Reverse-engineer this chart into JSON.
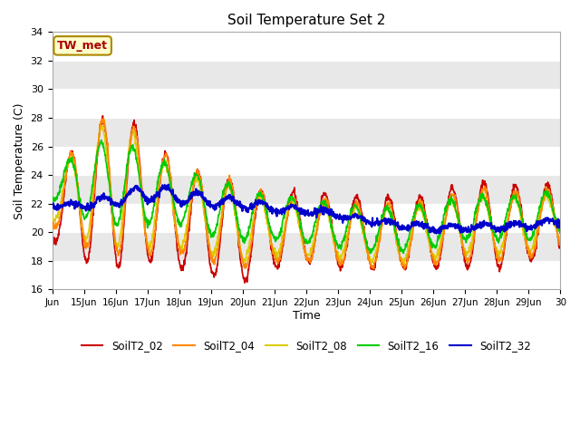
{
  "title": "Soil Temperature Set 2",
  "xlabel": "Time",
  "ylabel": "Soil Temperature (C)",
  "ylim": [
    16,
    34
  ],
  "yticks": [
    16,
    18,
    20,
    22,
    24,
    26,
    28,
    30,
    32,
    34
  ],
  "colors": {
    "SoilT2_02": "#cc0000",
    "SoilT2_04": "#ff8800",
    "SoilT2_08": "#ddcc00",
    "SoilT2_16": "#00cc00",
    "SoilT2_32": "#0000cc"
  },
  "bg_color": "#f0f0f0",
  "plot_bg_color": "#f0f0f0",
  "annotation_text": "TW_met",
  "annotation_color": "#aa0000",
  "annotation_bg": "#ffffcc",
  "annotation_border": "#aa8800",
  "start_day": 14,
  "end_day": 30,
  "xtick_labels": [
    "Jun",
    "15Jun",
    "16Jun",
    "17Jun",
    "18Jun",
    "19Jun",
    "20Jun",
    "21Jun",
    "22Jun",
    "23Jun",
    "24Jun",
    "25Jun",
    "26Jun",
    "27Jun",
    "28Jun",
    "29Jun",
    "30"
  ]
}
